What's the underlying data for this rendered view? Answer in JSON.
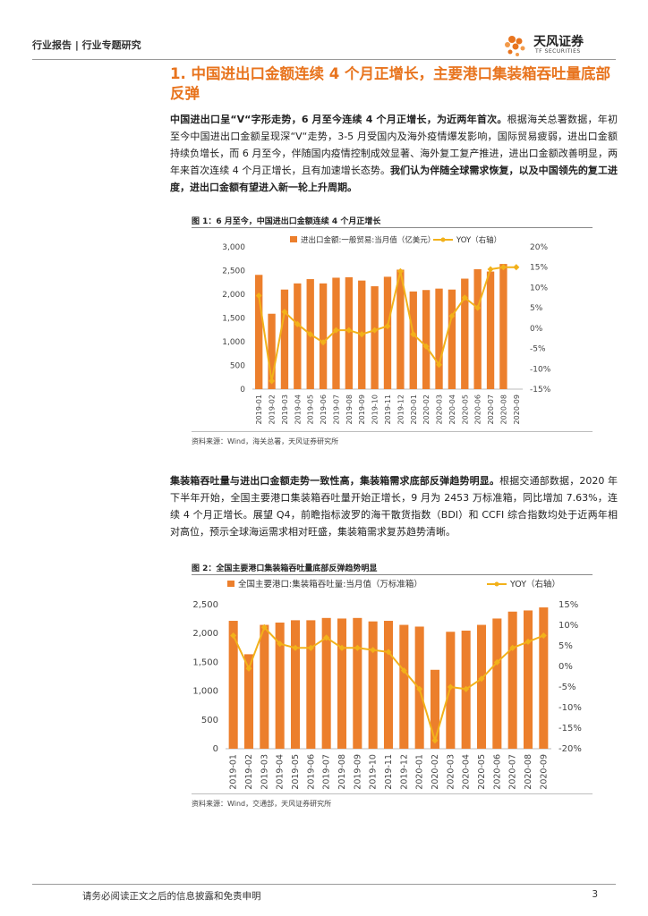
{
  "header": {
    "breadcrumb": "行业报告 | 行业专题研究",
    "logo_name": "天风证券",
    "logo_en": "TF SECURITIES",
    "accent": "#e8741e"
  },
  "section": {
    "title": "1. 中国进出口金额连续 4 个月正增长，主要港口集装箱吞吐量底部反弹"
  },
  "para1": {
    "bold_lead": "中国进出口呈“V“字形走势，6 月至今连续 4 个月正增长，为近两年首次。",
    "text": "根据海关总署数据，年初至今中国进出口金额呈现深“V“走势，3-5 月受国内及海外疫情爆发影响，国际贸易疲弱，进出口金额持续负增长，而 6 月至今，伴随国内疫情控制成效显著、海外复工复产推进，进出口金额改善明显，两年来首次连续 4 个月正增长，且有加速增长态势。",
    "bold_tail": "我们认为伴随全球需求恢复，以及中国领先的复工进度，进出口金额有望进入新一轮上升周期。"
  },
  "fig1": {
    "title": "图 1：6 月至今，中国进出口金额连续 4 个月正增长",
    "source": "资料来源：Wind，海关总署，天风证券研究所"
  },
  "para2": {
    "bold_lead": "集装箱吞吐量与进出口金额走势一致性高，集装箱需求底部反弹趋势明显。",
    "text": "根据交通部数据，2020 年下半年开始，全国主要港口集装箱吞吐量开始正增长，9 月为 2453 万标准箱，同比增加 7.63%，连续 4 个月正增长。展望 Q4，前瞻指标波罗的海干散货指数（BDI）和 CCFI 综合指数均处于近两年相对高位，预示全球海运需求相对旺盛，集装箱需求复苏趋势清晰。"
  },
  "fig2": {
    "title": "图 2：全国主要港口集装箱吞吐量底部反弹趋势明显",
    "source": "资料来源：Wind，交通部，天风证券研究所"
  },
  "footer": {
    "disclaimer": "请务必阅读正文之后的信息披露和免责申明",
    "page": "3"
  },
  "chart_data": [
    {
      "type": "bar",
      "categories": [
        "2019-01",
        "2019-02",
        "2019-03",
        "2019-04",
        "2019-05",
        "2019-06",
        "2019-07",
        "2019-08",
        "2019-09",
        "2019-10",
        "2019-11",
        "2019-12",
        "2020-01",
        "2020-02",
        "2020-03",
        "2020-04",
        "2020-05",
        "2020-06",
        "2020-07",
        "2020-08",
        "2020-09"
      ],
      "series": [
        {
          "name": "进出口金额:一般贸易:当月值（亿美元）",
          "kind": "bar",
          "axis": "left",
          "values": [
            2410,
            1590,
            2100,
            2230,
            2320,
            2230,
            2350,
            2360,
            2290,
            2170,
            2370,
            2520,
            2060,
            2090,
            2120,
            2100,
            2330,
            2530,
            2480,
            2640,
            0
          ]
        },
        {
          "name": "YOY（右轴）",
          "kind": "line",
          "axis": "right",
          "values": [
            8,
            -13,
            4,
            1,
            -1.5,
            -3.5,
            -0.5,
            -0.5,
            -1.5,
            -0.5,
            0.5,
            14,
            -1.5,
            -4.5,
            -9,
            3,
            7.5,
            5,
            14.5,
            15,
            15
          ]
        }
      ],
      "left_axis": {
        "min": 0,
        "max": 3000,
        "ticks": [
          "0",
          "500",
          "1,000",
          "1,500",
          "2,000",
          "2,500",
          "3,000"
        ]
      },
      "right_axis": {
        "min": -15,
        "max": 20,
        "ticks": [
          "-15%",
          "-10%",
          "-5%",
          "0%",
          "5%",
          "10%",
          "15%",
          "20%"
        ]
      },
      "colors": {
        "bar": "#ec7f2c",
        "line": "#f2b11a"
      }
    },
    {
      "type": "bar",
      "categories": [
        "2019-01",
        "2019-02",
        "2019-03",
        "2019-04",
        "2019-05",
        "2019-06",
        "2019-07",
        "2019-08",
        "2019-09",
        "2019-10",
        "2019-11",
        "2019-12",
        "2020-01",
        "2020-02",
        "2020-03",
        "2020-04",
        "2020-05",
        "2020-06",
        "2020-07",
        "2020-08",
        "2020-09"
      ],
      "series": [
        {
          "name": "全国主要港口:集装箱吞吐量:当月值（万标准箱）",
          "kind": "bar",
          "axis": "left",
          "values": [
            2220,
            1640,
            2150,
            2190,
            2230,
            2230,
            2270,
            2260,
            2270,
            2210,
            2220,
            2150,
            2120,
            1370,
            2030,
            2050,
            2150,
            2260,
            2380,
            2400,
            2453
          ]
        },
        {
          "name": "YOY（右轴）",
          "kind": "line",
          "axis": "right",
          "values": [
            7.5,
            -0.5,
            9.5,
            5.5,
            4.5,
            4.5,
            7,
            4.5,
            4.5,
            4,
            3.5,
            -1,
            -5.5,
            -18,
            -5,
            -5.5,
            -3,
            1,
            4.5,
            6,
            7.5
          ]
        }
      ],
      "left_axis": {
        "min": 0,
        "max": 2500,
        "ticks": [
          "0",
          "500",
          "1,000",
          "1,500",
          "2,000",
          "2,500"
        ]
      },
      "right_axis": {
        "min": -20,
        "max": 15,
        "ticks": [
          "-20%",
          "-15%",
          "-10%",
          "-5%",
          "0%",
          "5%",
          "10%",
          "15%"
        ]
      },
      "colors": {
        "bar": "#ec7f2c",
        "line": "#f2b11a"
      }
    }
  ]
}
